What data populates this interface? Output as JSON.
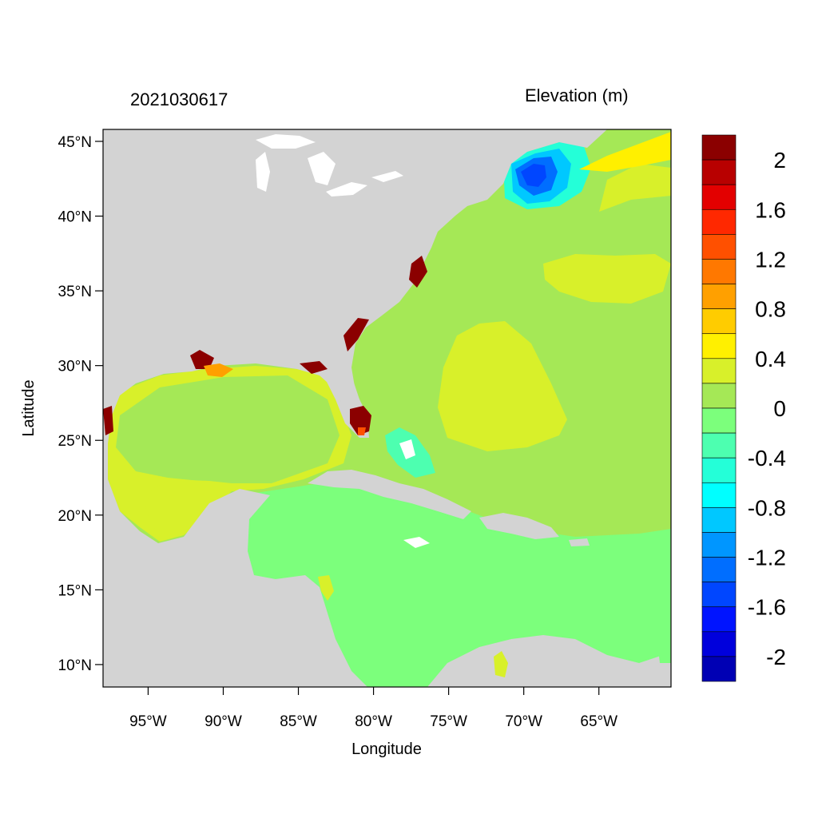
{
  "title_left": "2021030617",
  "title_right": "Elevation (m)",
  "x_axis": {
    "title": "Longitude",
    "ticks": [
      {
        "value": -95,
        "label": "95°W"
      },
      {
        "value": -90,
        "label": "90°W"
      },
      {
        "value": -85,
        "label": "85°W"
      },
      {
        "value": -80,
        "label": "80°W"
      },
      {
        "value": -75,
        "label": "75°W"
      },
      {
        "value": -70,
        "label": "70°W"
      },
      {
        "value": -65,
        "label": "65°W"
      }
    ]
  },
  "y_axis": {
    "title": "Latitude",
    "ticks": [
      {
        "value": 45,
        "label": "45°N"
      },
      {
        "value": 40,
        "label": "40°N"
      },
      {
        "value": 35,
        "label": "35°N"
      },
      {
        "value": 30,
        "label": "30°N"
      },
      {
        "value": 25,
        "label": "25°N"
      },
      {
        "value": 20,
        "label": "20°N"
      },
      {
        "value": 15,
        "label": "15°N"
      },
      {
        "value": 10,
        "label": "10°N"
      }
    ]
  },
  "colorbar": {
    "colors": [
      "#8b0000",
      "#b80000",
      "#e30000",
      "#ff2800",
      "#ff5000",
      "#ff7800",
      "#ffa000",
      "#ffcc00",
      "#fff000",
      "#d8f02a",
      "#a5e856",
      "#7cff7c",
      "#4dffb0",
      "#24ffd8",
      "#00ffff",
      "#00c8ff",
      "#0096ff",
      "#006eff",
      "#0046ff",
      "#0014ff",
      "#0000dc",
      "#0000b4"
    ],
    "labels": [
      "2",
      "1.6",
      "1.2",
      "0.8",
      "0.4",
      "0",
      "-0.4",
      "-0.8",
      "-1.2",
      "-1.6",
      "-2"
    ]
  },
  "colors": {
    "land": "#d3d3d3",
    "lake": "#ffffff",
    "elevation_neg01": "#7cff7c",
    "elevation_0": "#a5e856",
    "elevation_02": "#d8f02a",
    "elevation_05": "#fff000",
    "elevation_high": "#8b0000"
  }
}
